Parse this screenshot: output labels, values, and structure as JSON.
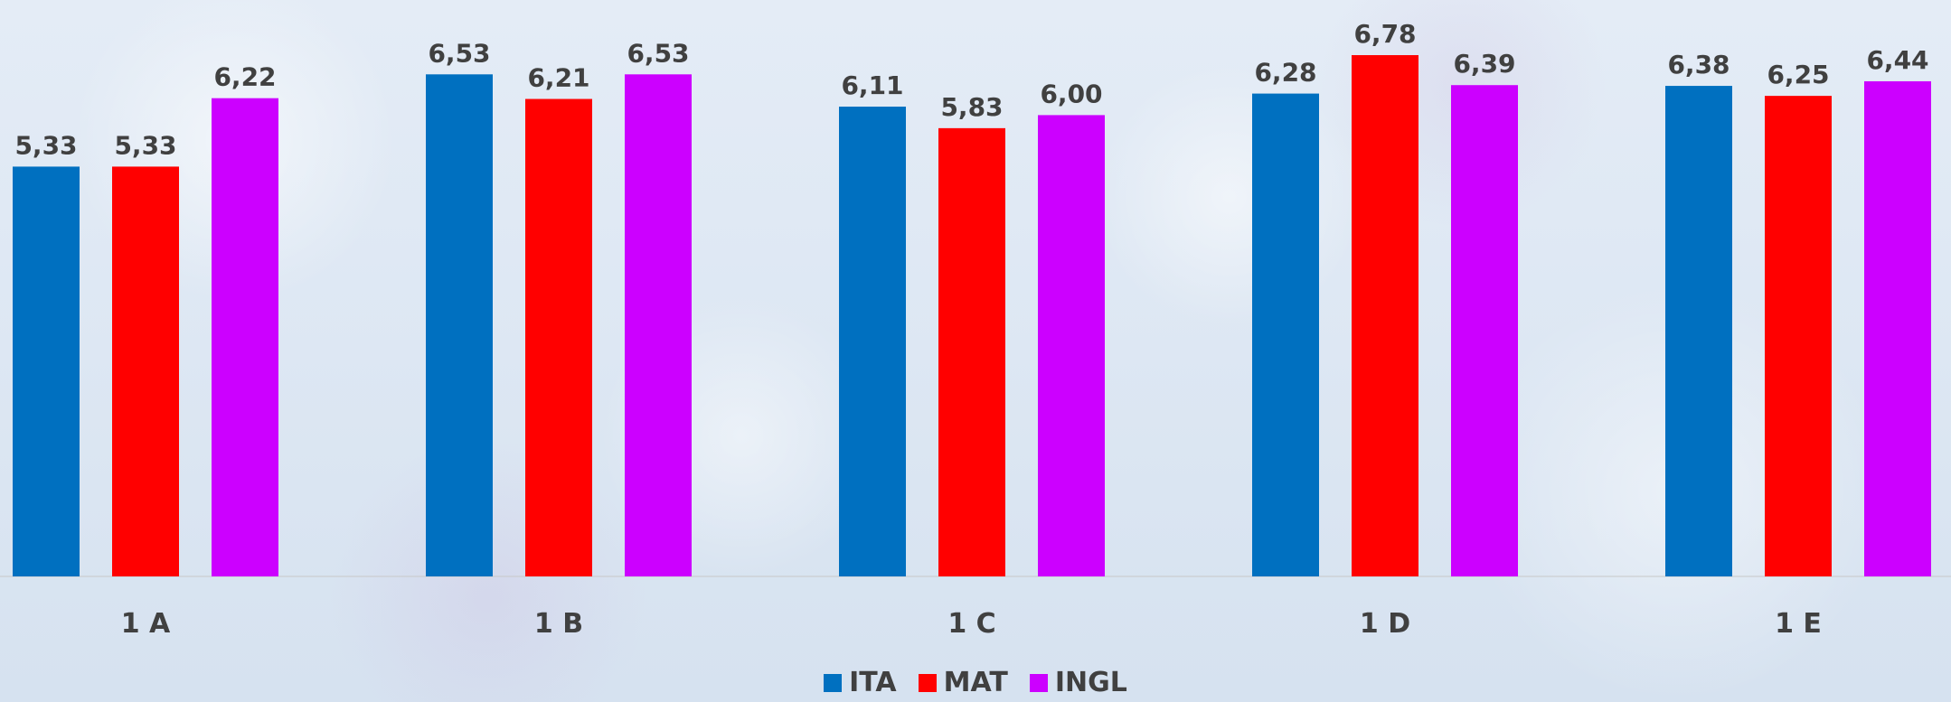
{
  "chart_data": {
    "type": "bar",
    "categories": [
      "1 A",
      "1 B",
      "1 C",
      "1 D",
      "1 E"
    ],
    "series": [
      {
        "name": "ITA",
        "color": "#0070c0",
        "values": [
          5.33,
          6.53,
          6.11,
          6.28,
          6.38
        ],
        "labels": [
          "5,33",
          "6,53",
          "6,11",
          "6,28",
          "6,38"
        ]
      },
      {
        "name": "MAT",
        "color": "#ff0000",
        "values": [
          5.33,
          6.21,
          5.83,
          6.78,
          6.25
        ],
        "labels": [
          "5,33",
          "6,21",
          "5,83",
          "6,78",
          "6,25"
        ]
      },
      {
        "name": "INGL",
        "color": "#cc00ff",
        "values": [
          6.22,
          6.53,
          6.0,
          6.39,
          6.44
        ],
        "labels": [
          "6,22",
          "6,53",
          "6,00",
          "6,39",
          "6,44"
        ]
      }
    ],
    "title": "",
    "xlabel": "",
    "ylabel": "",
    "grid": false,
    "legend_position": "bottom"
  }
}
